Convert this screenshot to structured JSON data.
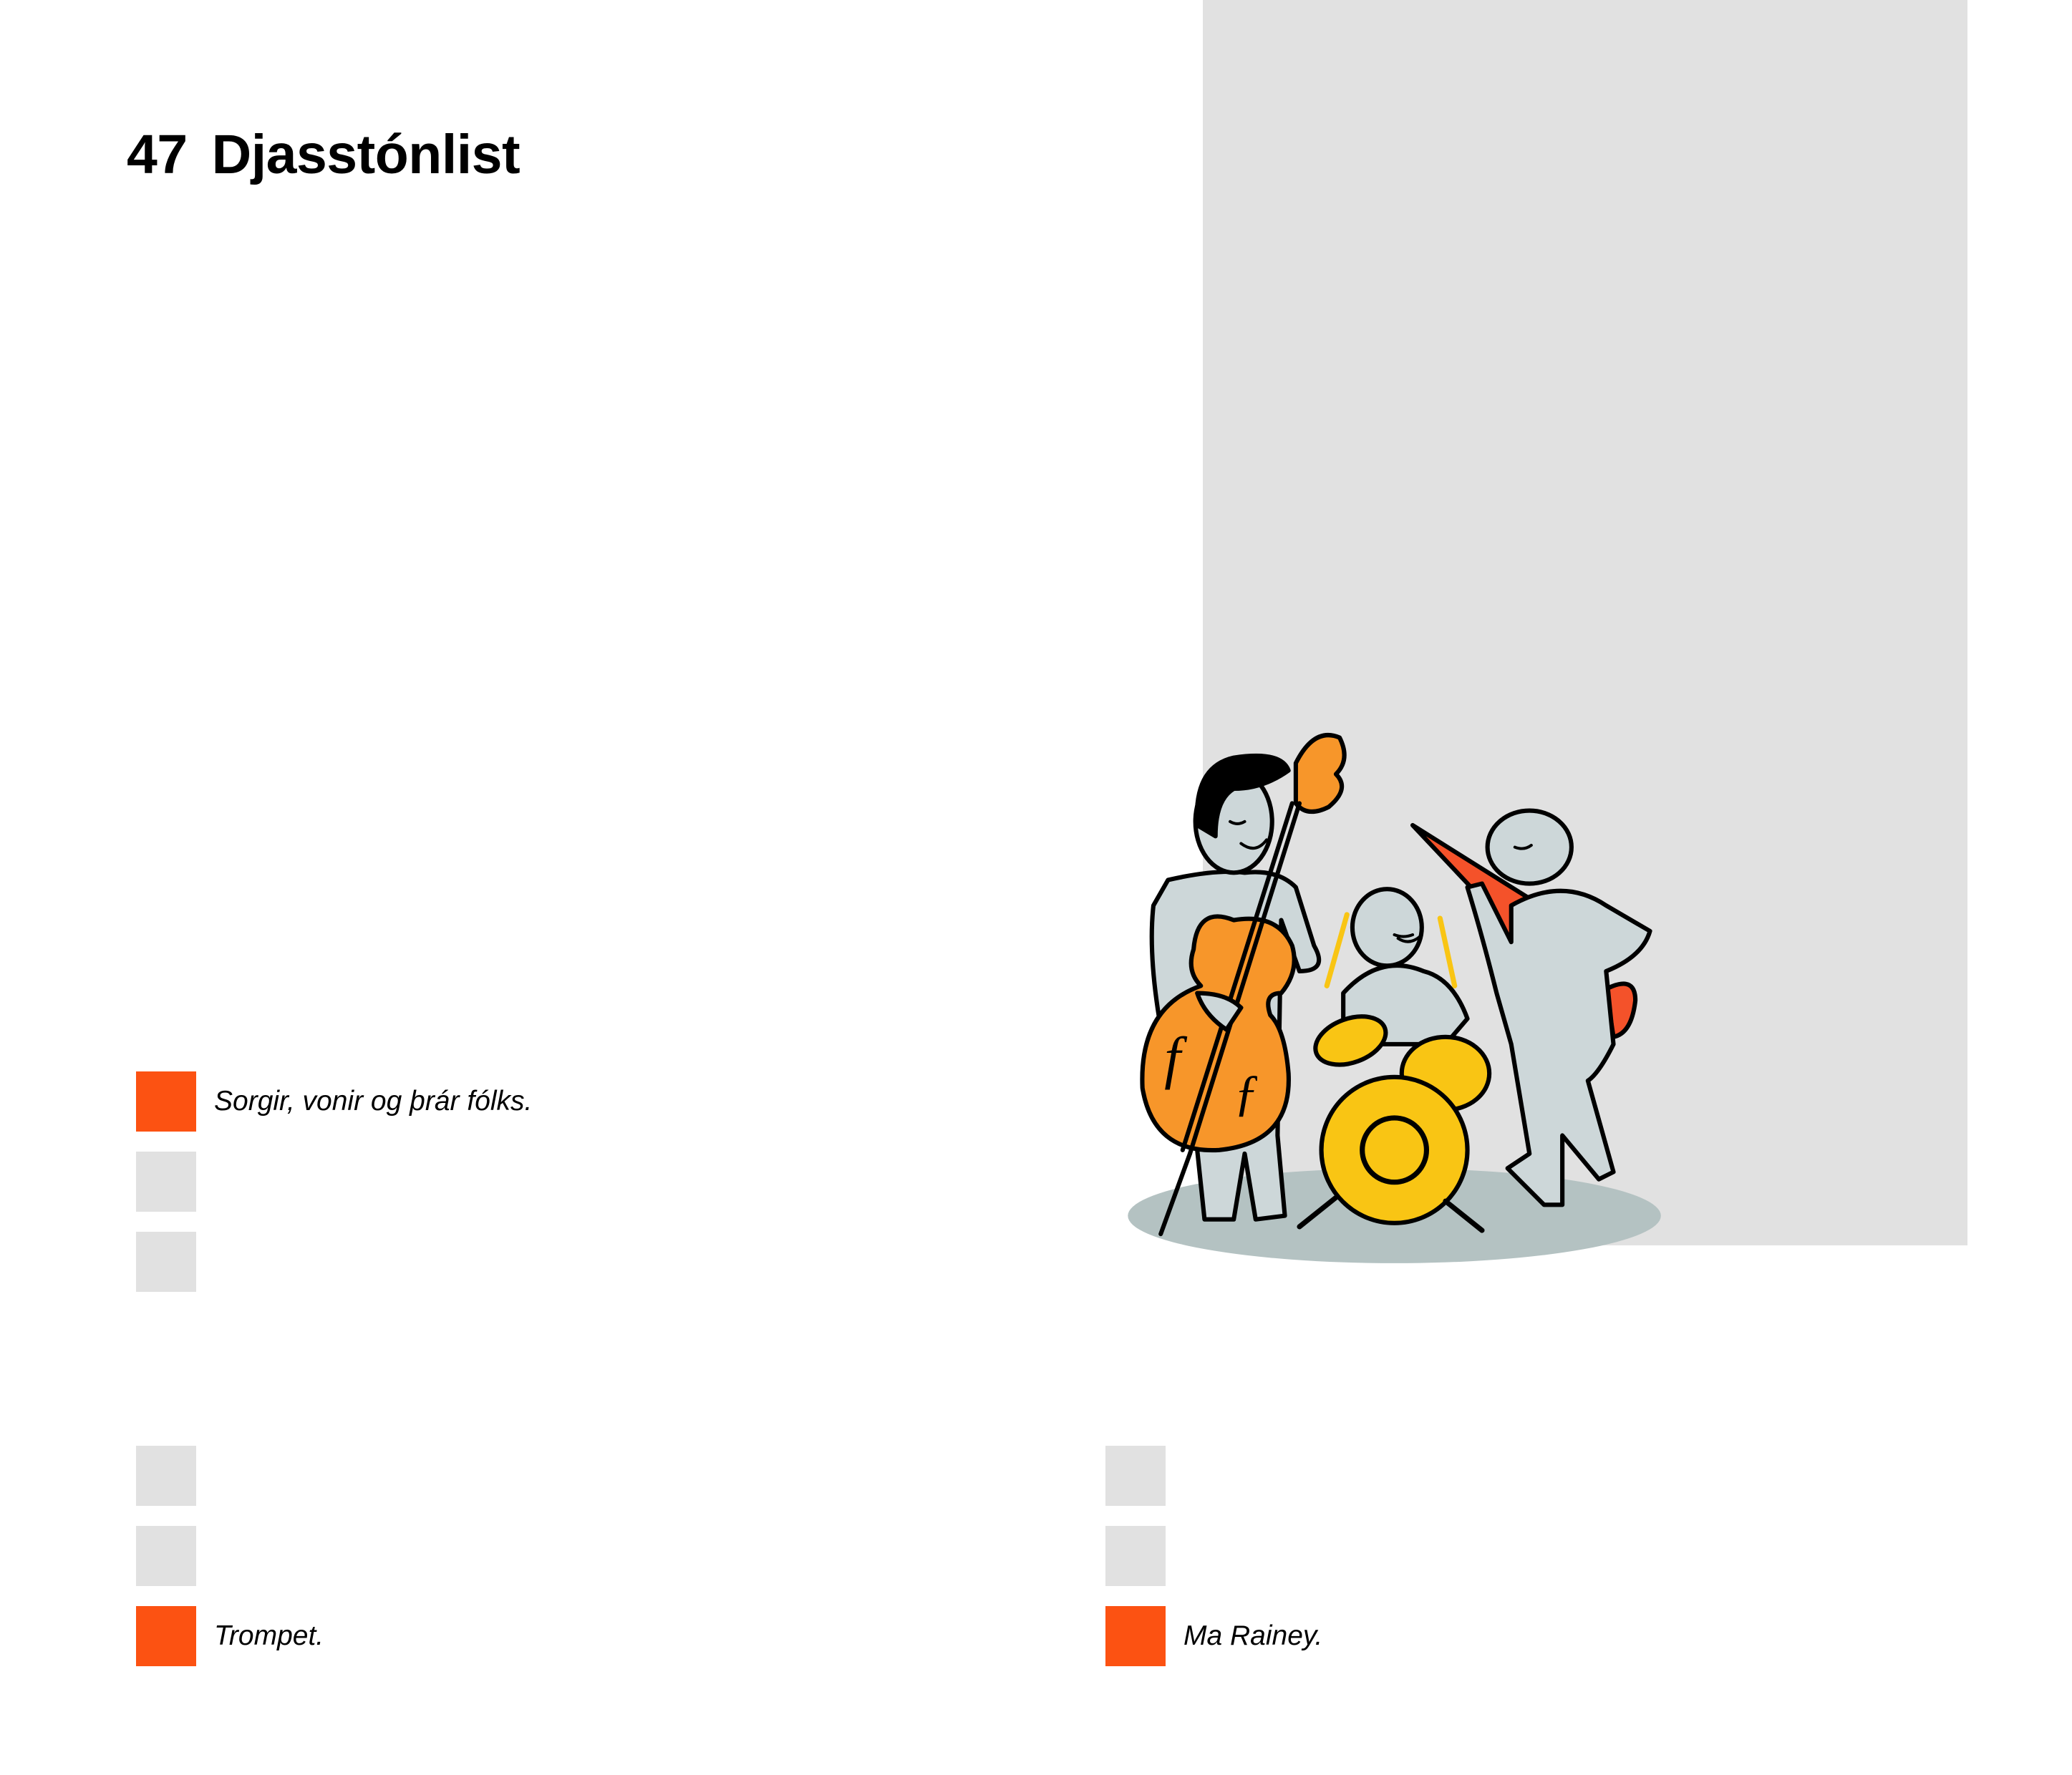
{
  "page": {
    "chapter_number": "47",
    "title": "Djasstónlist"
  },
  "colors": {
    "accent_orange": "#fc5212",
    "placeholder_gray": "#e1e1e1",
    "bass_orange": "#f7962a",
    "drum_yellow": "#f9c514",
    "guitar_red": "#f4522a"
  },
  "illustration": {
    "subject": "jazz-trio-icon"
  },
  "answer_groups": [
    {
      "items": [
        {
          "state": "selected",
          "text": "Sorgir, vonir og þrár fólks."
        },
        {
          "state": "empty",
          "text": ""
        },
        {
          "state": "empty",
          "text": ""
        }
      ]
    },
    {
      "items": [
        {
          "state": "empty",
          "text": ""
        },
        {
          "state": "empty",
          "text": ""
        },
        {
          "state": "selected",
          "text": "Trompet."
        }
      ]
    },
    {
      "items": [
        {
          "state": "empty",
          "text": ""
        },
        {
          "state": "empty",
          "text": ""
        },
        {
          "state": "selected",
          "text": "Ma Rainey."
        }
      ]
    }
  ]
}
